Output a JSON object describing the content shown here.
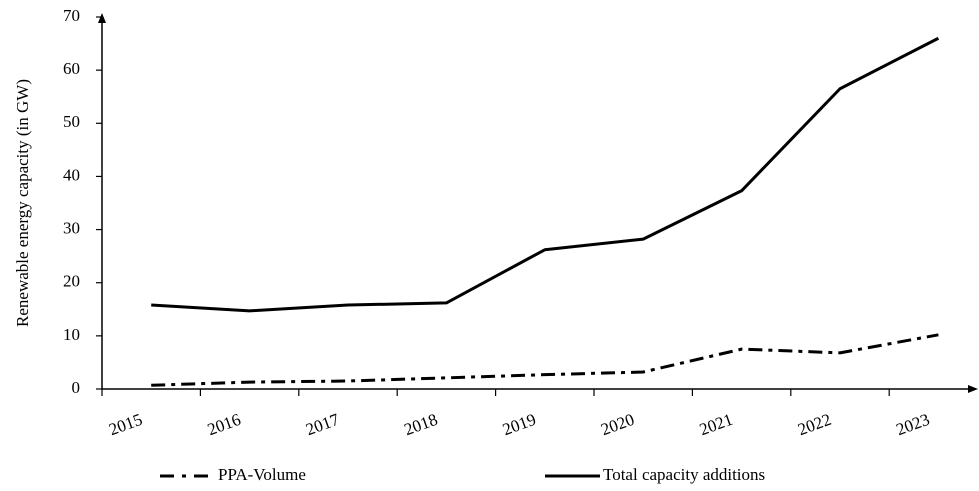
{
  "chart_data": {
    "type": "line",
    "y_label": "Renewable energy capacity (in GW)",
    "categories": [
      "2015",
      "2016",
      "2017",
      "2018",
      "2019",
      "2020",
      "2021",
      "2022",
      "2023"
    ],
    "series": [
      {
        "name": "PPA-Volume",
        "color": "#000000",
        "style": "dashdot",
        "values": [
          0.7,
          1.3,
          1.5,
          2.1,
          2.7,
          3.2,
          7.5,
          6.8,
          10.2
        ]
      },
      {
        "name": "Total capacity additions",
        "color": "#000000",
        "style": "solid",
        "values": [
          15.8,
          14.7,
          15.8,
          16.2,
          26.2,
          28.2,
          37.3,
          56.5,
          66.0
        ]
      }
    ],
    "ylim": [
      0,
      70
    ],
    "yticks": [
      0,
      10,
      20,
      30,
      40,
      50,
      60,
      70
    ],
    "grid": false
  }
}
